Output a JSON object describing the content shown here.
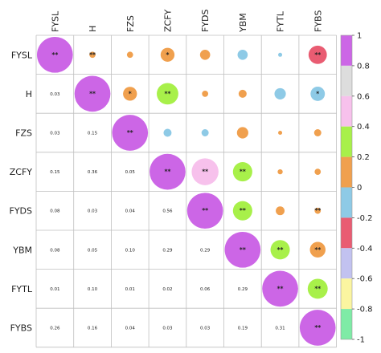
{
  "chart_data": {
    "type": "heatmap",
    "title": "",
    "variables": [
      "FYSL",
      "H",
      "FZS",
      "ZCFY",
      "FYDS",
      "YBM",
      "FYTL",
      "FYBS"
    ],
    "matrix": [
      [
        1.0,
        0.03,
        0.03,
        0.15,
        0.08,
        -0.08,
        -0.01,
        -0.26
      ],
      [
        0.03,
        1.0,
        0.15,
        0.36,
        0.03,
        0.05,
        -0.1,
        -0.16
      ],
      [
        0.03,
        0.15,
        1.0,
        -0.05,
        -0.04,
        0.1,
        0.01,
        0.04
      ],
      [
        0.15,
        0.36,
        -0.05,
        1.0,
        0.56,
        0.29,
        0.02,
        0.03
      ],
      [
        0.08,
        0.03,
        -0.04,
        0.56,
        1.0,
        0.29,
        0.06,
        0.03
      ],
      [
        -0.08,
        0.05,
        0.1,
        0.29,
        0.29,
        1.0,
        0.29,
        0.19
      ],
      [
        -0.01,
        -0.1,
        0.01,
        0.02,
        0.06,
        0.29,
        1.0,
        0.31
      ],
      [
        -0.26,
        -0.16,
        0.04,
        0.03,
        0.03,
        0.19,
        0.31,
        1.0
      ]
    ],
    "upper_labels": [
      [
        "",
        "**",
        "",
        "*",
        "",
        "",
        "",
        "**"
      ],
      [
        "",
        "",
        "*",
        "**",
        "",
        "",
        "",
        "*"
      ],
      [
        "",
        "",
        "",
        "",
        "",
        "",
        "",
        ""
      ],
      [
        "",
        "",
        "",
        "",
        "**",
        "**",
        "",
        ""
      ],
      [
        "",
        "",
        "",
        "",
        "",
        "**",
        "",
        "**"
      ],
      [
        "",
        "",
        "",
        "",
        "",
        "",
        "**",
        "**"
      ],
      [
        "",
        "",
        "",
        "",
        "",
        "",
        "",
        "**"
      ],
      [
        "",
        "",
        "",
        "",
        "",
        "",
        "",
        ""
      ]
    ],
    "diagonal_labels": [
      "**",
      "**",
      "**",
      "**",
      "**",
      "**",
      "**",
      "**"
    ],
    "lower_labels": [
      [],
      [
        "0.03"
      ],
      [
        "0.03",
        "0.15"
      ],
      [
        "0.15",
        "0.36",
        "0.05"
      ],
      [
        "0.08",
        "0.03",
        "0.04",
        "0.56"
      ],
      [
        "0.08",
        "0.05",
        "0.10",
        "0.29",
        "0.29"
      ],
      [
        "0.01",
        "0.10",
        "0.01",
        "0.02",
        "0.06",
        "0.29"
      ],
      [
        "0.26",
        "0.16",
        "0.04",
        "0.03",
        "0.03",
        "0.19",
        "0.31"
      ]
    ],
    "colorbar": {
      "ticks": [
        1,
        0.8,
        0.6,
        0.4,
        0.2,
        0,
        -0.2,
        -0.4,
        -0.6,
        -0.8,
        -1
      ],
      "tick_labels": [
        "1",
        "0.8",
        "0.6",
        "0.4",
        "0.2",
        "0",
        "-0.2",
        "-0.4",
        "-0.6",
        "-0.8",
        "-1"
      ],
      "bins": [
        {
          "from": 0.8,
          "to": 1.0,
          "color": "#CC66E6"
        },
        {
          "from": 0.6,
          "to": 0.8,
          "color": "#DDDDDD"
        },
        {
          "from": 0.4,
          "to": 0.6,
          "color": "#F7C1EC"
        },
        {
          "from": 0.2,
          "to": 0.4,
          "color": "#A8F04A"
        },
        {
          "from": 0.0,
          "to": 0.2,
          "color": "#F0A04E"
        },
        {
          "from": -0.2,
          "to": 0.0,
          "color": "#8ECAE6"
        },
        {
          "from": -0.4,
          "to": -0.2,
          "color": "#E95C72"
        },
        {
          "from": -0.6,
          "to": -0.4,
          "color": "#C2C2F0"
        },
        {
          "from": -0.8,
          "to": -0.6,
          "color": "#FBF5A0"
        },
        {
          "from": -1.0,
          "to": -0.8,
          "color": "#7FEBA6"
        }
      ]
    },
    "grid": true,
    "legend": "right"
  }
}
